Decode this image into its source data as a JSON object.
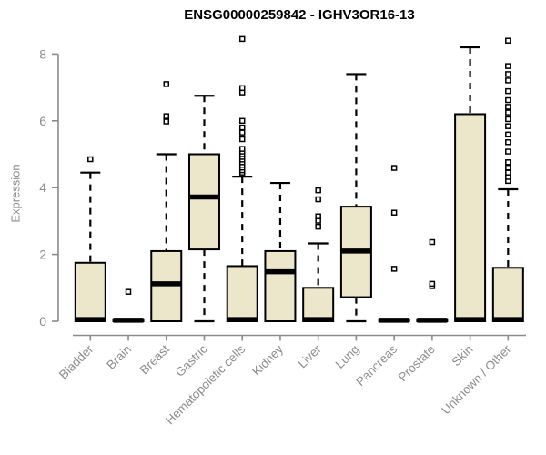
{
  "title": "ENSG00000259842 - IGHV3OR16-13",
  "chart_data": {
    "type": "boxplot",
    "title": "ENSG00000259842 - IGHV3OR16-13",
    "ylabel": "Expression",
    "xlabel": "",
    "ylim": [
      0,
      8
    ],
    "yticks": [
      0,
      2,
      4,
      6,
      8
    ],
    "grid": false,
    "legend": "none",
    "categories": [
      "Bladder",
      "Brain",
      "Breast",
      "Gastric",
      "Hematopoietic cells",
      "Kidney",
      "Liver",
      "Lung",
      "Pancreas",
      "Prostate",
      "Skin",
      "Unknown / Other"
    ],
    "series": [
      {
        "name": "Bladder",
        "whisker_low": 0,
        "q1": 0,
        "median": 0.05,
        "q3": 1.75,
        "whisker_high": 4.45,
        "outliers": [
          4.85
        ]
      },
      {
        "name": "Brain",
        "whisker_low": 0,
        "q1": 0,
        "median": 0.03,
        "q3": 0.06,
        "whisker_high": 0.06,
        "outliers": [
          0.88
        ]
      },
      {
        "name": "Breast",
        "whisker_low": 0,
        "q1": 0,
        "median": 1.12,
        "q3": 2.1,
        "whisker_high": 5.0,
        "outliers": [
          5.98,
          6.14,
          7.1
        ]
      },
      {
        "name": "Gastric",
        "whisker_low": 0,
        "q1": 2.15,
        "median": 3.72,
        "q3": 5.0,
        "whisker_high": 6.75,
        "outliers": []
      },
      {
        "name": "Hematopoietic cells",
        "whisker_low": 0,
        "q1": 0,
        "median": 0.05,
        "q3": 1.65,
        "whisker_high": 4.33,
        "outliers": [
          4.45,
          4.52,
          4.6,
          4.68,
          4.76,
          4.84,
          4.92,
          5.0,
          5.08,
          5.16,
          5.45,
          5.65,
          5.8,
          6.0,
          6.85,
          6.98,
          8.45
        ]
      },
      {
        "name": "Kidney",
        "whisker_low": 0,
        "q1": 0,
        "median": 1.48,
        "q3": 2.1,
        "whisker_high": 4.14,
        "outliers": []
      },
      {
        "name": "Liver",
        "whisker_low": 0,
        "q1": 0,
        "median": 0.05,
        "q3": 1.0,
        "whisker_high": 2.33,
        "outliers": [
          2.83,
          3.01,
          3.14,
          3.65,
          3.92
        ]
      },
      {
        "name": "Lung",
        "whisker_low": 0,
        "q1": 0.72,
        "median": 2.1,
        "q3": 3.43,
        "whisker_high": 7.4,
        "outliers": []
      },
      {
        "name": "Pancreas",
        "whisker_low": 0,
        "q1": 0,
        "median": 0.03,
        "q3": 0.06,
        "whisker_high": 0.06,
        "outliers": [
          1.57,
          3.25,
          4.59
        ]
      },
      {
        "name": "Prostate",
        "whisker_low": 0,
        "q1": 0,
        "median": 0.03,
        "q3": 0.06,
        "whisker_high": 0.06,
        "outliers": [
          1.05,
          1.12,
          2.37
        ]
      },
      {
        "name": "Skin",
        "whisker_low": 0,
        "q1": 0,
        "median": 0.05,
        "q3": 6.2,
        "whisker_high": 8.2,
        "outliers": []
      },
      {
        "name": "Unknown / Other",
        "whisker_low": 0,
        "q1": 0,
        "median": 0.05,
        "q3": 1.6,
        "whisker_high": 3.95,
        "outliers": [
          4.2,
          4.32,
          4.45,
          4.6,
          4.76,
          5.08,
          5.36,
          5.59,
          5.84,
          6.05,
          6.25,
          6.42,
          6.62,
          6.89,
          7.21,
          7.4,
          7.64,
          8.4
        ]
      }
    ]
  },
  "colors": {
    "box_fill": "#ece6ca",
    "box_border": "#000000",
    "median": "#000000",
    "whisker": "#000000",
    "outlier_fill": "#ffffff",
    "outlier_border": "#000000",
    "axis": "#8c8c8c",
    "tick_label": "#8c8c8c",
    "title": "#000000"
  }
}
